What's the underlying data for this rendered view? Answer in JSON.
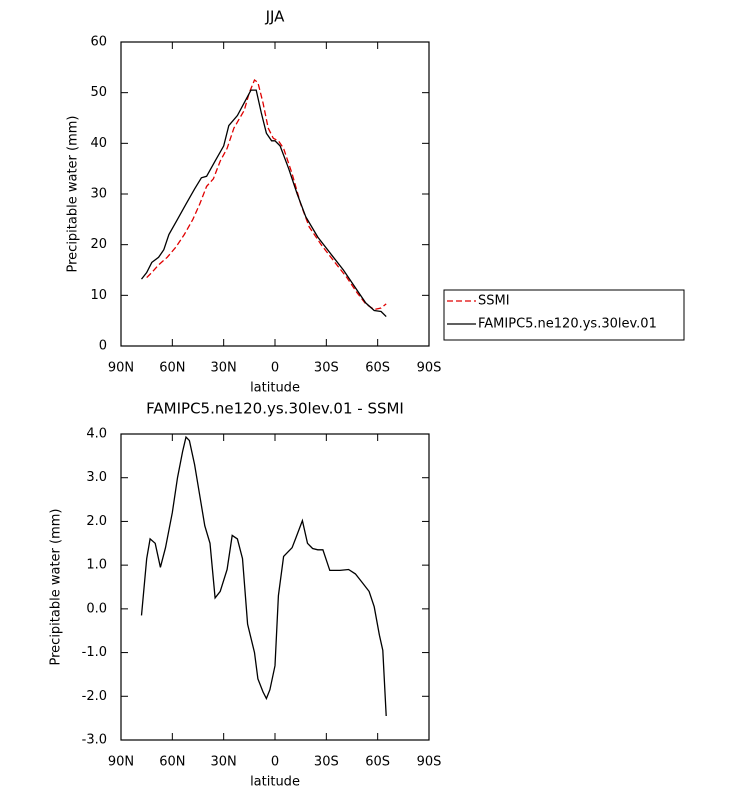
{
  "chart_data": [
    {
      "type": "line",
      "title": "JJA",
      "xlabel": "latitude",
      "ylabel": "Precipitable water (mm)",
      "xlim": [
        90,
        -90
      ],
      "xticks": [
        {
          "value": 90,
          "label": "90N"
        },
        {
          "value": 60,
          "label": "60N"
        },
        {
          "value": 30,
          "label": "30N"
        },
        0,
        {
          "value": -30,
          "label": "30S"
        },
        {
          "value": -60,
          "label": "60S"
        },
        {
          "value": -90,
          "label": "90S"
        }
      ],
      "ylim": [
        0,
        60
      ],
      "yticks": [
        0,
        10,
        20,
        30,
        40,
        50,
        60
      ],
      "legend": "outside right",
      "series": [
        {
          "name": "SSMI",
          "color": "#e00000",
          "style": "dashed",
          "x": [
            75,
            72,
            68,
            63,
            58,
            53,
            48,
            44,
            40,
            36,
            32,
            28,
            24,
            18,
            15,
            12,
            10,
            7,
            4,
            1,
            -2,
            -5,
            -10,
            -15,
            -20,
            -27,
            -35,
            -42,
            -48,
            -53,
            -58,
            -62,
            -65
          ],
          "values": [
            13.5,
            14.5,
            16,
            17.5,
            19.5,
            22,
            25,
            28,
            31.5,
            33,
            36.5,
            39,
            43,
            46.5,
            50,
            52.5,
            52,
            48,
            43,
            41,
            40.5,
            39,
            34,
            28,
            23.5,
            20,
            16.5,
            13.5,
            10.5,
            8.3,
            7.2,
            7.5,
            8.3
          ]
        },
        {
          "name": "FAMIPC5.ne120.ys.30lev.01",
          "color": "#000000",
          "style": "solid",
          "x": [
            78,
            75,
            72,
            68,
            65,
            62,
            57,
            52,
            47,
            43,
            40,
            35,
            30,
            27,
            22,
            18,
            14,
            11,
            8,
            5,
            2,
            0,
            -3,
            -8,
            -13,
            -18,
            -25,
            -33,
            -40,
            -47,
            -53,
            -58,
            -62,
            -65
          ],
          "values": [
            13.2,
            14.5,
            16.5,
            17.5,
            19,
            22,
            25,
            28,
            31,
            33.2,
            33.5,
            36.5,
            39.5,
            43.5,
            45.5,
            48,
            50.5,
            50.5,
            46,
            42,
            40.5,
            40.5,
            39.5,
            35,
            30,
            25.5,
            21.5,
            18,
            15,
            11.5,
            8.5,
            7,
            6.8,
            5.8
          ]
        }
      ]
    },
    {
      "type": "line",
      "title": "FAMIPC5.ne120.ys.30lev.01 - SSMI",
      "xlabel": "latitude",
      "ylabel": "Precipitable water (mm)",
      "xlim": [
        90,
        -90
      ],
      "xticks": [
        {
          "value": 90,
          "label": "90N"
        },
        {
          "value": 60,
          "label": "60N"
        },
        {
          "value": 30,
          "label": "30N"
        },
        0,
        {
          "value": -30,
          "label": "30S"
        },
        {
          "value": -60,
          "label": "60S"
        },
        {
          "value": -90,
          "label": "90S"
        }
      ],
      "ylim": [
        -3,
        4
      ],
      "yticks": [
        {
          "value": -3,
          "label": "-3.0"
        },
        {
          "value": -2,
          "label": "-2.0"
        },
        {
          "value": -1,
          "label": "-1.0"
        },
        {
          "value": 0,
          "label": "0.0"
        },
        {
          "value": 1,
          "label": "1.0"
        },
        {
          "value": 2,
          "label": "2.0"
        },
        {
          "value": 3,
          "label": "3.0"
        },
        {
          "value": 4,
          "label": "4.0"
        }
      ],
      "series": [
        {
          "color": "#000000",
          "style": "solid",
          "x": [
            78,
            75,
            73,
            70,
            67,
            64,
            60,
            57,
            54,
            52,
            50,
            47,
            44,
            41,
            38,
            35,
            32,
            28,
            25,
            22,
            19,
            16,
            12,
            10,
            7,
            5,
            3,
            0,
            -2,
            -5,
            -10,
            -12,
            -16,
            -19,
            -22,
            -25,
            -28,
            -32,
            -38,
            -43,
            -47,
            -51,
            -55,
            -58,
            -61,
            -63,
            -65
          ],
          "values": [
            -0.15,
            1.15,
            1.6,
            1.5,
            0.95,
            1.4,
            2.2,
            3.0,
            3.6,
            3.93,
            3.85,
            3.3,
            2.6,
            1.9,
            1.5,
            0.25,
            0.4,
            0.9,
            1.68,
            1.6,
            1.15,
            -0.35,
            -1.0,
            -1.6,
            -1.9,
            -2.05,
            -1.85,
            -1.3,
            0.3,
            1.2,
            1.4,
            1.6,
            2.02,
            1.5,
            1.38,
            1.35,
            1.35,
            0.88,
            0.88,
            0.9,
            0.8,
            0.6,
            0.4,
            0.05,
            -0.6,
            -0.95,
            -2.45
          ]
        }
      ]
    }
  ]
}
